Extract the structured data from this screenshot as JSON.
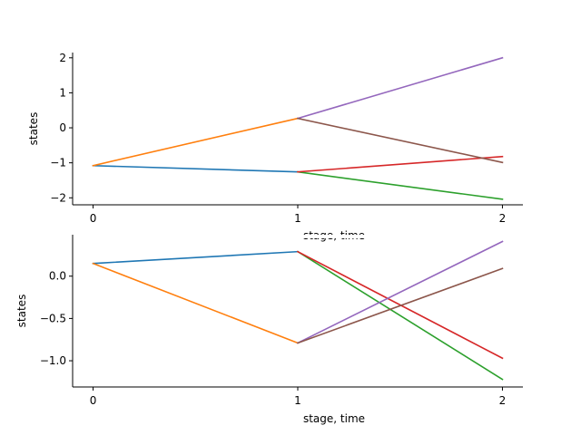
{
  "chart_data": [
    {
      "type": "line",
      "title": "",
      "xlabel": "stage, time",
      "ylabel": "states",
      "xlim": [
        -0.1,
        2.1
      ],
      "ylim": [
        -2.2,
        2.15
      ],
      "xticks": [
        0,
        1,
        2
      ],
      "xtick_labels": [
        "0",
        "1",
        "2"
      ],
      "yticks": [
        2,
        1,
        0,
        -1,
        -2
      ],
      "ytick_labels": [
        "2",
        "1",
        "0",
        "−1",
        "−2"
      ],
      "grid": false,
      "legend": "none",
      "series": [
        {
          "color": "#1f77b4",
          "x": [
            0,
            1
          ],
          "y": [
            -1.08,
            -1.26
          ]
        },
        {
          "color": "#ff7f0e",
          "x": [
            0,
            1
          ],
          "y": [
            -1.08,
            0.27
          ]
        },
        {
          "color": "#2ca02c",
          "x": [
            1,
            2
          ],
          "y": [
            -1.26,
            -2.04
          ]
        },
        {
          "color": "#d62728",
          "x": [
            1,
            2
          ],
          "y": [
            -1.26,
            -0.82
          ]
        },
        {
          "color": "#9467bd",
          "x": [
            1,
            2
          ],
          "y": [
            0.27,
            2.0
          ]
        },
        {
          "color": "#8c564b",
          "x": [
            1,
            2
          ],
          "y": [
            0.27,
            -0.99
          ]
        }
      ]
    },
    {
      "type": "line",
      "title": "",
      "xlabel": "stage, time",
      "ylabel": "states",
      "xlim": [
        -0.1,
        2.1
      ],
      "ylim": [
        -1.31,
        0.49
      ],
      "xticks": [
        0,
        1,
        2
      ],
      "xtick_labels": [
        "0",
        "1",
        "2"
      ],
      "yticks": [
        0.0,
        -0.5,
        -1.0
      ],
      "ytick_labels": [
        "0.0",
        "−0.5",
        "−1.0"
      ],
      "grid": false,
      "legend": "none",
      "series": [
        {
          "color": "#1f77b4",
          "x": [
            0,
            1
          ],
          "y": [
            0.15,
            0.29
          ]
        },
        {
          "color": "#ff7f0e",
          "x": [
            0,
            1
          ],
          "y": [
            0.15,
            -0.79
          ]
        },
        {
          "color": "#2ca02c",
          "x": [
            1,
            2
          ],
          "y": [
            0.29,
            -1.22
          ]
        },
        {
          "color": "#d62728",
          "x": [
            1,
            2
          ],
          "y": [
            0.29,
            -0.97
          ]
        },
        {
          "color": "#9467bd",
          "x": [
            1,
            2
          ],
          "y": [
            -0.79,
            0.41
          ]
        },
        {
          "color": "#8c564b",
          "x": [
            1,
            2
          ],
          "y": [
            -0.79,
            0.09
          ]
        }
      ]
    }
  ]
}
